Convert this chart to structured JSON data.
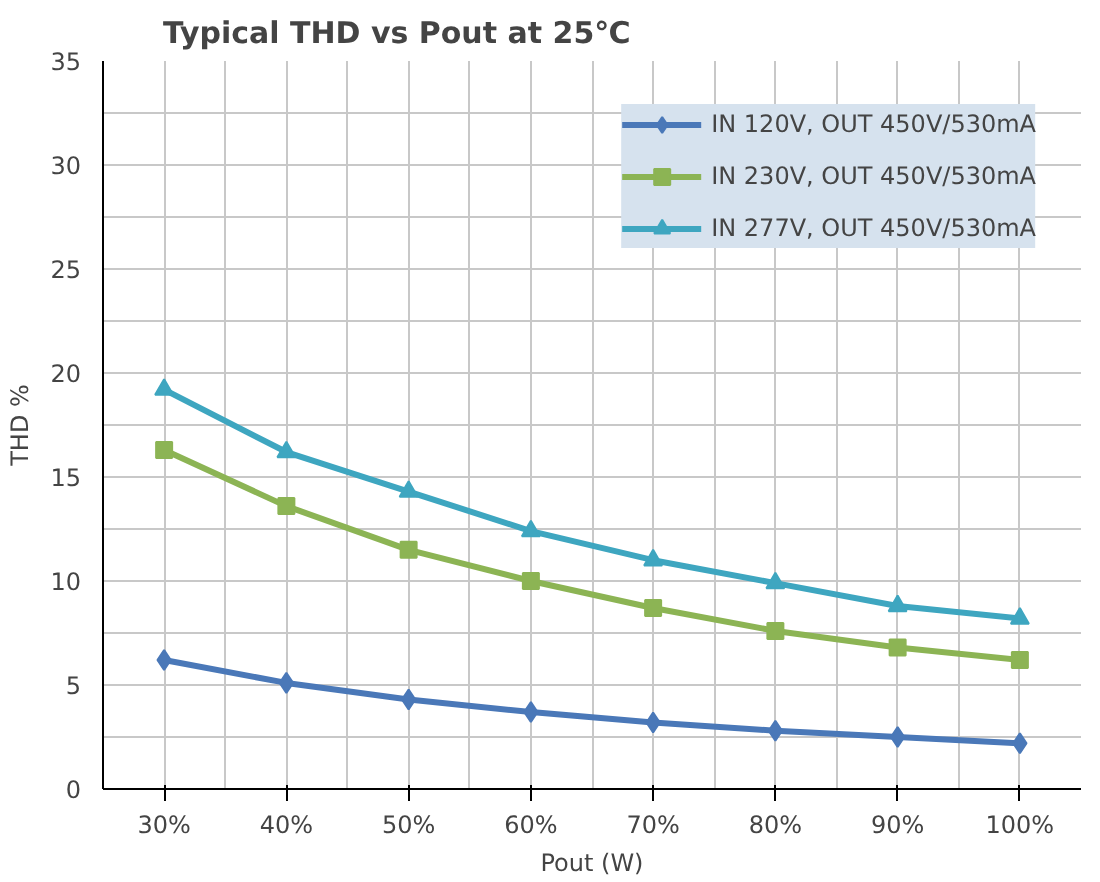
{
  "chart_data": {
    "type": "line",
    "title": "Typical THD vs Pout at 25℃",
    "xlabel": "Pout (W)",
    "ylabel": "THD %",
    "categories": [
      "30%",
      "40%",
      "50%",
      "60%",
      "70%",
      "80%",
      "90%",
      "100%"
    ],
    "series": [
      {
        "name": "IN 120V, OUT 450V/530mA",
        "color": "#4a78b8",
        "marker": "diamond",
        "values": [
          6.2,
          5.1,
          4.3,
          3.7,
          3.2,
          2.8,
          2.5,
          2.2
        ]
      },
      {
        "name": "IN 230V, OUT 450V/530mA",
        "color": "#8cb454",
        "marker": "square",
        "values": [
          16.3,
          13.6,
          11.5,
          10.0,
          8.7,
          7.6,
          6.8,
          6.2
        ]
      },
      {
        "name": "IN 277V, OUT 450V/530mA",
        "color": "#3ea6c0",
        "marker": "triangle",
        "values": [
          19.2,
          16.2,
          14.3,
          12.4,
          11.0,
          9.9,
          8.8,
          8.2
        ]
      }
    ],
    "ylim": [
      0,
      35
    ],
    "yticks": [
      0,
      5,
      10,
      15,
      20,
      25,
      30,
      35
    ],
    "grid": true,
    "legend": "top right"
  }
}
